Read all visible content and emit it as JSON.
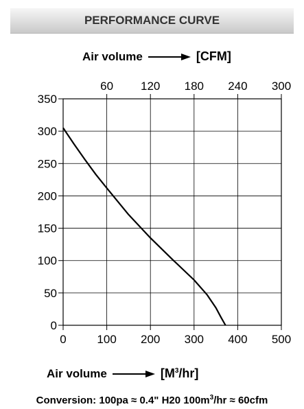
{
  "header": {
    "title": "PERFORMANCE CURVE"
  },
  "top_axis": {
    "label": "Air volume",
    "unit": "[CFM]"
  },
  "bottom_axis": {
    "label": "Air volume",
    "unit_prefix": "[M",
    "unit_sup": "3",
    "unit_suffix": "/hr]"
  },
  "footnote": {
    "part1": "Conversion: 100pa ≈ 0.4\" H20 100m",
    "sup": "3",
    "part2": "/hr ≈ 60cfm"
  },
  "chart_data": {
    "type": "line",
    "title": "PERFORMANCE CURVE",
    "xlabel": "Air volume [M3/hr]",
    "x2label": "Air volume [CFM]",
    "ylabel": "",
    "xlim": [
      0,
      500
    ],
    "ylim": [
      0,
      350
    ],
    "x_ticks": [
      0,
      100,
      200,
      300,
      400,
      500
    ],
    "x2_ticks": [
      60,
      120,
      180,
      240,
      300
    ],
    "y_ticks": [
      0,
      50,
      100,
      150,
      200,
      250,
      300,
      350
    ],
    "grid": true,
    "series": [
      {
        "x": [
          0,
          25,
          50,
          75,
          100,
          150,
          200,
          250,
          300,
          330,
          350,
          362,
          372
        ],
        "y": [
          305,
          280,
          256,
          233,
          212,
          171,
          135,
          102,
          70,
          47,
          27,
          12,
          0
        ]
      }
    ]
  }
}
